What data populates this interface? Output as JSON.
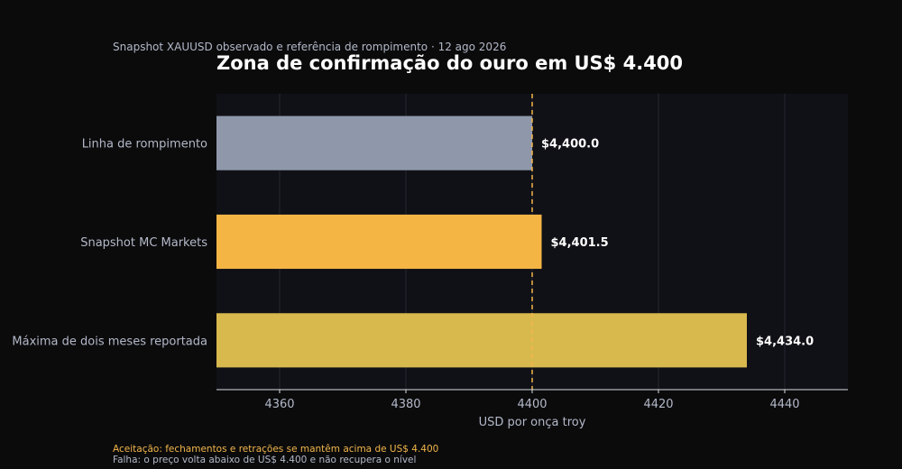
{
  "header": {
    "subtitle": "Snapshot XAUUSD observado e referência de rompimento · 12 ago 2026",
    "title": "Zona de confirmação do ouro em US$ 4.400"
  },
  "footer": {
    "acceptance": "Aceitação: fechamentos e retrações se mantêm acima de US$ 4.400",
    "failure": "Falha: o preço volta abaixo de US$ 4.400 e não recupera o nível"
  },
  "chart_data": {
    "type": "bar",
    "orientation": "horizontal",
    "title": "Zona de confirmação do ouro em US$ 4.400",
    "subtitle": "Snapshot XAUUSD observado e referência de rompimento · 12 ago 2026",
    "xlabel": "USD por onça troy",
    "ylabel": "",
    "xlim": [
      4350,
      4450
    ],
    "xticks": [
      4360,
      4380,
      4400,
      4420,
      4440
    ],
    "grid": true,
    "categories": [
      "Linha de rompimento",
      "Snapshot MC Markets",
      "Máxima de dois meses reportada"
    ],
    "values": [
      4400.0,
      4401.5,
      4434.0
    ],
    "value_labels": [
      "$4,400.0",
      "$4,401.5",
      "$4,434.0"
    ],
    "colors": [
      "#8f98ab",
      "#f4b545",
      "#d8b94e"
    ],
    "reference_line": {
      "x": 4400,
      "color": "#f2b64a",
      "style": "dashed"
    }
  },
  "colors": {
    "background": "#0b0b0c",
    "plot_background": "#101116",
    "grid": "#262830",
    "axis": "#d9dce3",
    "text_muted": "#b3b9c8",
    "accent": "#f2b64a"
  }
}
